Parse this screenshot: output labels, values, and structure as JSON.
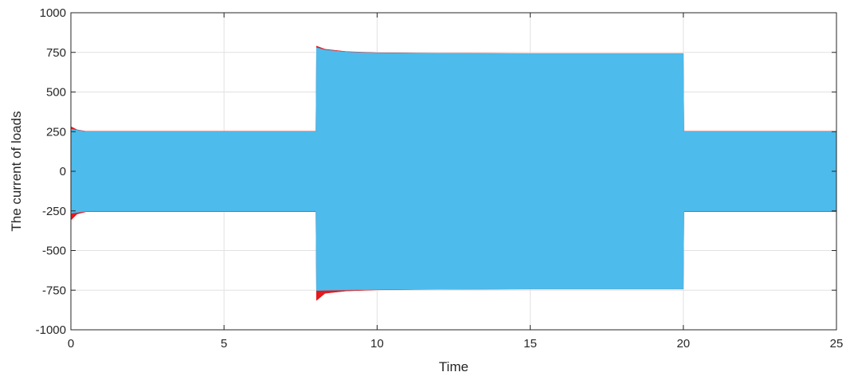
{
  "chart_data": {
    "type": "area",
    "title": "",
    "xlabel": "Time",
    "ylabel": "The current of loads",
    "xlim": [
      0,
      25
    ],
    "ylim": [
      -1000,
      1000
    ],
    "xticks": [
      0,
      5,
      10,
      15,
      20,
      25
    ],
    "yticks": [
      -1000,
      -750,
      -500,
      -250,
      0,
      250,
      500,
      750,
      1000
    ],
    "grid": true,
    "legend": "none",
    "series": [
      {
        "color": "#e41a1c",
        "upper": [
          [
            0,
            0
          ],
          [
            0.02,
            280
          ],
          [
            0.2,
            262
          ],
          [
            0.5,
            252
          ],
          [
            8,
            252
          ],
          [
            8.02,
            790
          ],
          [
            8.3,
            770
          ],
          [
            9,
            755
          ],
          [
            10,
            748
          ],
          [
            12,
            745
          ],
          [
            15,
            743
          ],
          [
            20,
            743
          ],
          [
            20.02,
            252
          ],
          [
            25,
            252
          ]
        ],
        "lower": [
          [
            0,
            0
          ],
          [
            0.02,
            -305
          ],
          [
            0.2,
            -270
          ],
          [
            0.5,
            -255
          ],
          [
            8,
            -255
          ],
          [
            8.02,
            -815
          ],
          [
            8.3,
            -770
          ],
          [
            9,
            -755
          ],
          [
            10,
            -748
          ],
          [
            12,
            -745
          ],
          [
            15,
            -743
          ],
          [
            20,
            -743
          ],
          [
            20.02,
            -255
          ],
          [
            25,
            -255
          ]
        ]
      },
      {
        "color": "#4dbbeb",
        "upper": [
          [
            0,
            0
          ],
          [
            0.02,
            265
          ],
          [
            0.5,
            250
          ],
          [
            8,
            250
          ],
          [
            8.02,
            780
          ],
          [
            8.3,
            765
          ],
          [
            9,
            752
          ],
          [
            10,
            746
          ],
          [
            12,
            744
          ],
          [
            15,
            742
          ],
          [
            20,
            742
          ],
          [
            20.02,
            250
          ],
          [
            25,
            250
          ]
        ],
        "lower": [
          [
            0,
            0
          ],
          [
            0.02,
            -265
          ],
          [
            0.5,
            -252
          ],
          [
            8,
            -252
          ],
          [
            8.02,
            -752
          ],
          [
            10,
            -746
          ],
          [
            15,
            -742
          ],
          [
            20,
            -742
          ],
          [
            20.02,
            -252
          ],
          [
            25,
            -252
          ]
        ]
      }
    ]
  }
}
